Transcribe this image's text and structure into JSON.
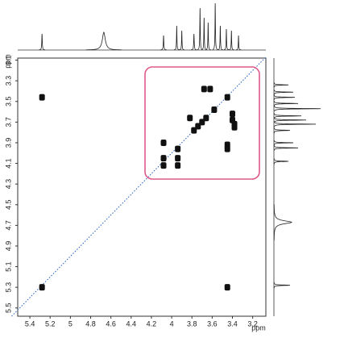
{
  "chart_data": {
    "type": "nmr-2d",
    "x_label": "ppm",
    "y_label": "ppm",
    "xlim": [
      5.52,
      3.07
    ],
    "ylim": [
      3.08,
      5.58
    ],
    "xticks": [
      5.4,
      5.2,
      5.0,
      4.8,
      4.6,
      4.4,
      4.2,
      4.0,
      3.8,
      3.6,
      3.4,
      3.2
    ],
    "yticks": [
      3.1,
      3.3,
      3.5,
      3.7,
      3.9,
      4.1,
      4.3,
      4.5,
      4.7,
      4.9,
      5.1,
      5.3,
      5.5
    ],
    "x": [
      5.28,
      5.28,
      3.45,
      4.08,
      3.94,
      4.08,
      3.94,
      3.78,
      3.74,
      3.7,
      3.66,
      3.58,
      3.45,
      3.68,
      3.62,
      3.4,
      3.4,
      3.38,
      3.38,
      3.82,
      3.45,
      3.45,
      3.94,
      4.08
    ],
    "y": [
      5.3,
      3.46,
      5.3,
      4.12,
      3.96,
      3.9,
      4.12,
      3.78,
      3.74,
      3.7,
      3.66,
      3.58,
      3.46,
      3.38,
      3.38,
      3.68,
      3.62,
      3.72,
      3.75,
      3.66,
      3.92,
      3.96,
      4.05,
      4.05
    ],
    "color": "#111111",
    "diagonal_color": "#1f5fbf",
    "box_color": "#e0588a",
    "projection": {
      "shifts": [
        5.28,
        4.67,
        4.08,
        3.95,
        3.9,
        3.78,
        3.72,
        3.68,
        3.64,
        3.57,
        3.52,
        3.46,
        3.41,
        3.34
      ],
      "heights": [
        20,
        22,
        18,
        30,
        24,
        20,
        52,
        40,
        34,
        58,
        30,
        26,
        24,
        18
      ],
      "linewidths": [
        0.006,
        0.035,
        0.006,
        0.005,
        0.005,
        0.006,
        0.005,
        0.005,
        0.005,
        0.005,
        0.005,
        0.005,
        0.005,
        0.005
      ]
    }
  }
}
